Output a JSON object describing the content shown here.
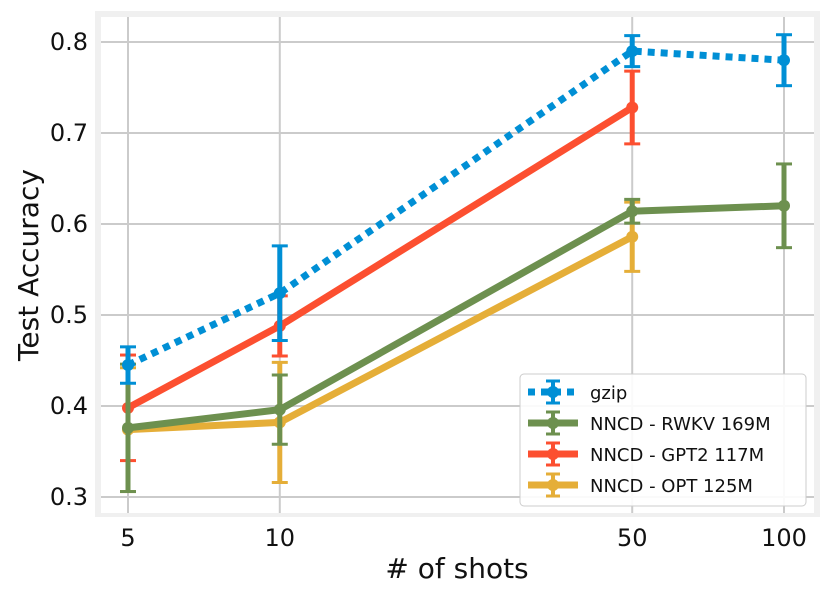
{
  "chart_data": {
    "type": "line",
    "title": "",
    "xlabel": "# of shots",
    "ylabel": "Test Accuracy",
    "x": [
      5,
      10,
      50,
      100
    ],
    "x_scale": "log",
    "xticks": [
      "5",
      "10",
      "50",
      "100"
    ],
    "yticks": [
      "0.3",
      "0.4",
      "0.5",
      "0.6",
      "0.7",
      "0.8"
    ],
    "ylim": [
      0.295,
      0.835
    ],
    "grid": true,
    "legend_position": "bottom-right",
    "series": [
      {
        "name": "gzip",
        "color": "#008fd5",
        "style": "dotted",
        "x": [
          5,
          10,
          50,
          100
        ],
        "values": [
          0.445,
          0.524,
          0.79,
          0.78
        ],
        "err": [
          0.02,
          0.052,
          0.017,
          0.028
        ]
      },
      {
        "name": "NNCD - RWKV 169M",
        "color": "#6d904f",
        "style": "solid",
        "x": [
          5,
          10,
          50,
          100
        ],
        "values": [
          0.376,
          0.396,
          0.614,
          0.62
        ],
        "err": [
          0.07,
          0.038,
          0.013,
          0.046
        ]
      },
      {
        "name": "NNCD - GPT2 117M",
        "color": "#fc4f30",
        "style": "solid",
        "x": [
          5,
          10,
          50
        ],
        "values": [
          0.398,
          0.488,
          0.728
        ],
        "err": [
          0.058,
          0.033,
          0.04
        ]
      },
      {
        "name": "NNCD - OPT 125M",
        "color": "#e5ae38",
        "style": "solid",
        "x": [
          5,
          10,
          50
        ],
        "values": [
          0.374,
          0.382,
          0.586
        ],
        "err": [
          0.068,
          0.066,
          0.038
        ]
      }
    ]
  }
}
